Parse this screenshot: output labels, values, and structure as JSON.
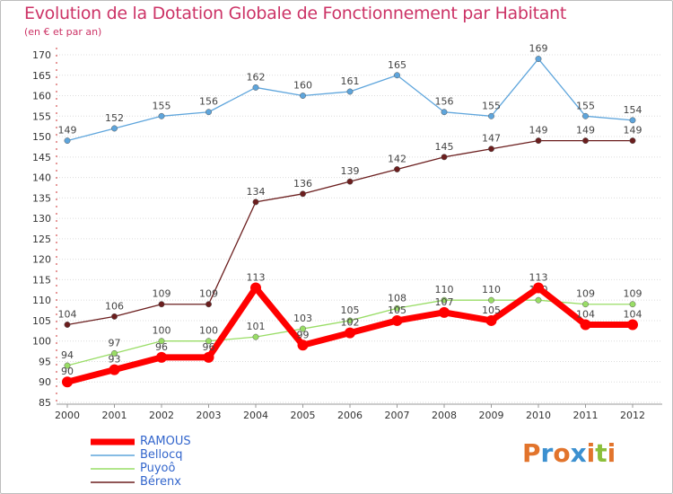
{
  "header": {
    "title": "Evolution de la Dotation Globale de Fonctionnement par Habitant",
    "subtitle": "(en € et par an)"
  },
  "logo": {
    "letters": [
      "P",
      "r",
      "o",
      "x",
      "i",
      "t",
      "i"
    ],
    "colors": [
      "#e2742c",
      "#3c90d0",
      "#e2742c",
      "#3c90d0",
      "#e2742c",
      "#8bbf3a",
      "#e2742c"
    ]
  },
  "chart_data": {
    "type": "line",
    "title": "Evolution de la Dotation Globale de Fonctionnement par Habitant",
    "subtitle": "(en € et par an)",
    "x": [
      "2000",
      "2001",
      "2002",
      "2003",
      "2004",
      "2005",
      "2006",
      "2007",
      "2008",
      "2009",
      "2010",
      "2011",
      "2012"
    ],
    "ylim": [
      85,
      170
    ],
    "yticks": [
      85,
      90,
      95,
      100,
      105,
      110,
      115,
      120,
      125,
      130,
      135,
      140,
      145,
      150,
      155,
      160,
      165,
      170
    ],
    "series": [
      {
        "name": "RAMOUS",
        "color": "#ff0000",
        "values": [
          90,
          93,
          96,
          96,
          113,
          99,
          102,
          105,
          107,
          105,
          113,
          104,
          104
        ]
      },
      {
        "name": "Bellocq",
        "color": "#5ea5dc",
        "values": [
          149,
          152,
          155,
          156,
          162,
          160,
          161,
          165,
          156,
          155,
          169,
          155,
          154
        ]
      },
      {
        "name": "Puyoô",
        "color": "#99dd66",
        "values": [
          94,
          97,
          100,
          100,
          101,
          103,
          105,
          108,
          110,
          110,
          110,
          109,
          109
        ]
      },
      {
        "name": "Bérenx",
        "color": "#6b1e1e",
        "values": [
          104,
          106,
          109,
          109,
          134,
          136,
          139,
          142,
          145,
          147,
          149,
          149,
          149
        ]
      }
    ]
  }
}
